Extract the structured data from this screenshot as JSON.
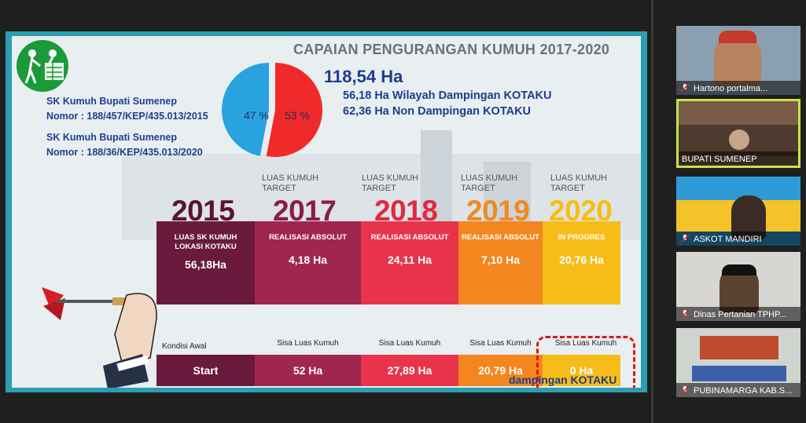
{
  "slide": {
    "title": "CAPAIAN PENGURANGAN KUMUH 2017-2020",
    "sk": [
      "SK Kumuh Bupati Sumenep",
      "Nomor : 188/457/KEP/435.013/2015",
      "SK Kumuh Bupati Sumenep",
      "Nomor : 188/36/KEP/435.013/2020"
    ],
    "pie": {
      "left_pct": "47 %",
      "right_pct": "53 %",
      "left_color": "#29a3e0",
      "right_color": "#f02a2a",
      "left_value": 47,
      "right_value": 53
    },
    "total": "118,54 Ha",
    "line1": "56,18 Ha Wilayah Dampingan KOTAKU",
    "line2": "62,36 Ha Non Dampingan KOTAKU",
    "target_label_line1": "LUAS KUMUH",
    "target_label_line2": "TARGET",
    "years": [
      "2015",
      "2017",
      "2018",
      "2019",
      "2020"
    ],
    "cells": [
      {
        "label": "LUAS SK KUMUH LOKASI KOTAKU",
        "value": "56,18Ha",
        "color": "#6a1a3d"
      },
      {
        "label": "REALISASI ABSOLUT",
        "value": "4,18 Ha",
        "color": "#a0264f"
      },
      {
        "label": "REALISASI ABSOLUT",
        "value": "24,11 Ha",
        "color": "#e8344b"
      },
      {
        "label": "REALISASI ABSOLUT",
        "value": "7,10 Ha",
        "color": "#f4861f"
      },
      {
        "label": "IN PROGRES",
        "value": "20,76 Ha",
        "color": "#f6bd19"
      }
    ],
    "kondisi_awal": "Kondisi Awal",
    "sisa_label": "Sisa Luas Kumuh",
    "bottom": [
      "Start",
      "52 Ha",
      "27,89 Ha",
      "20,79 Ha",
      "0 Ha"
    ],
    "brand": "dampingan KOTAKU"
  },
  "participants": [
    {
      "name": "Hartono portalma...",
      "muted": true
    },
    {
      "name": "BUPATI SUMENEP",
      "muted": false
    },
    {
      "name": "ASKOT MANDIRI",
      "muted": true
    },
    {
      "name": "Dinas Pertanian TPHP...",
      "muted": true
    },
    {
      "name": "PUBINAMARGA KAB.S...",
      "muted": true
    }
  ]
}
